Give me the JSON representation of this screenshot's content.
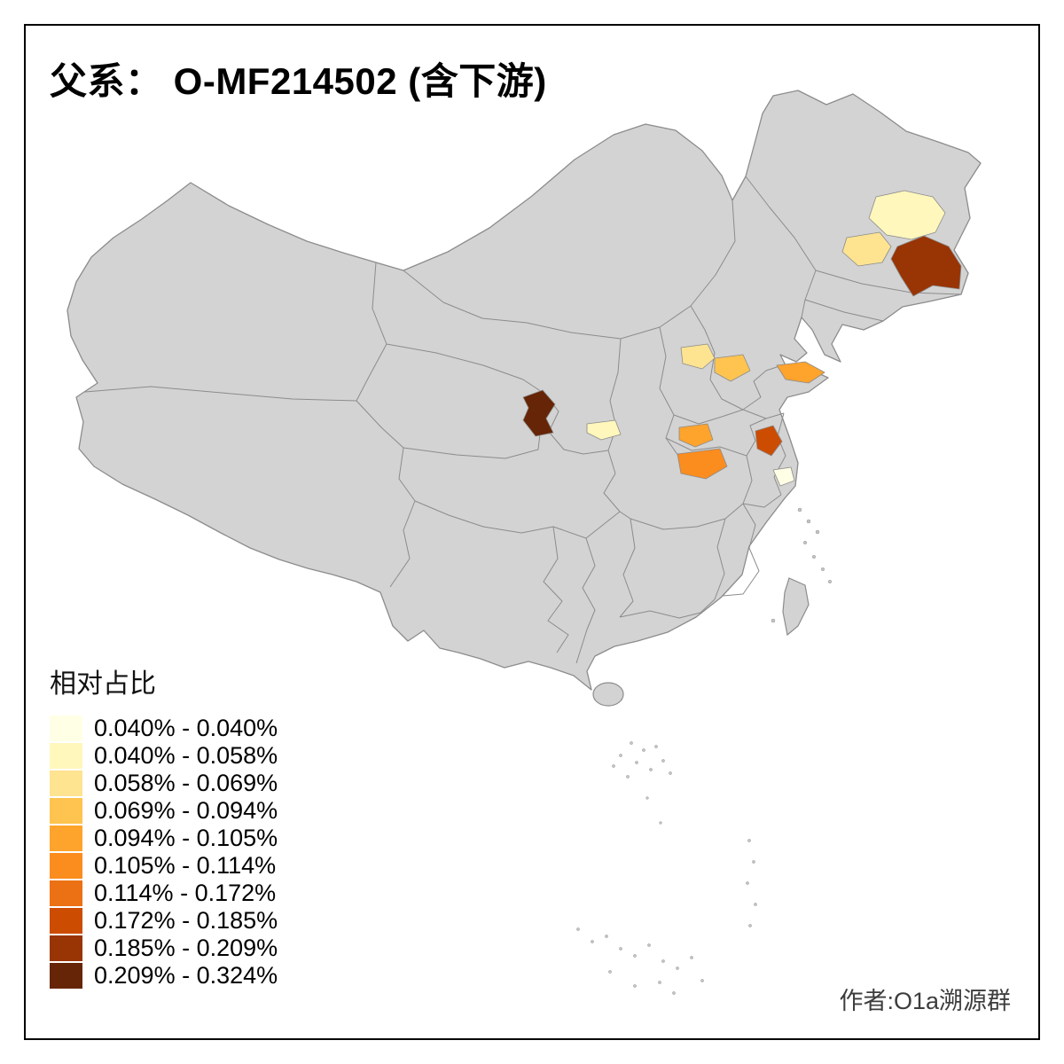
{
  "title": "父系： O-MF214502 (含下游)",
  "legend": {
    "title": "相对占比",
    "items": [
      {
        "label": "0.040% - 0.040%",
        "color": "#FFFFE5"
      },
      {
        "label": "0.040% - 0.058%",
        "color": "#FFF7BC"
      },
      {
        "label": "0.058% - 0.069%",
        "color": "#FEE391"
      },
      {
        "label": "0.069% - 0.094%",
        "color": "#FEC44F"
      },
      {
        "label": "0.094% - 0.105%",
        "color": "#FEA32C"
      },
      {
        "label": "0.105% - 0.114%",
        "color": "#FB8C1E"
      },
      {
        "label": "0.114% - 0.172%",
        "color": "#EC7014"
      },
      {
        "label": "0.172% - 0.185%",
        "color": "#CC4C02"
      },
      {
        "label": "0.185% - 0.209%",
        "color": "#993404"
      },
      {
        "label": "0.209% - 0.324%",
        "color": "#662506"
      }
    ]
  },
  "credit": "作者:O1a溯源群",
  "map": {
    "land_color": "#D3D3D3",
    "border_color": "#8C8C8C",
    "background": "#FFFFFF",
    "regions": [
      {
        "id": "r1",
        "color": "#FFF7BC"
      },
      {
        "id": "r2",
        "color": "#FEE391"
      },
      {
        "id": "r3",
        "color": "#993404"
      },
      {
        "id": "r4",
        "color": "#FEE391"
      },
      {
        "id": "r5",
        "color": "#FEC44F"
      },
      {
        "id": "r6",
        "color": "#FEA32C"
      },
      {
        "id": "r7",
        "color": "#662506"
      },
      {
        "id": "r8",
        "color": "#FFF7BC"
      },
      {
        "id": "r9",
        "color": "#FEA32C"
      },
      {
        "id": "r10",
        "color": "#FB8C1E"
      },
      {
        "id": "r11",
        "color": "#CC4C02"
      },
      {
        "id": "r12",
        "color": "#FFFFE5"
      }
    ]
  }
}
